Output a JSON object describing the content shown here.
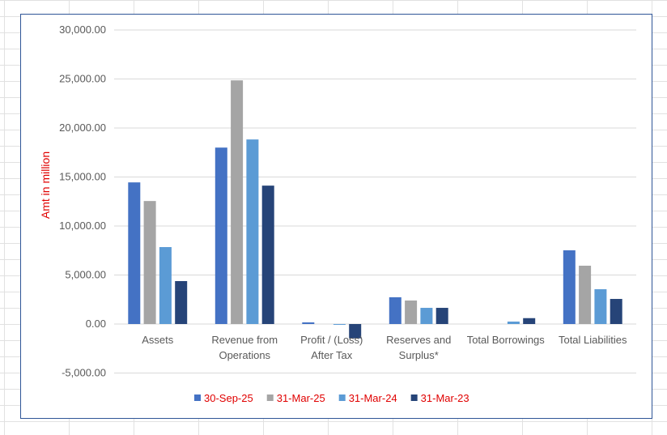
{
  "chart_data": {
    "type": "bar",
    "title": "",
    "xlabel": "",
    "ylabel": "Amt in million",
    "ylim": [
      -5000,
      30000
    ],
    "yticks": [
      "30,000.00",
      "25,000.00",
      "20,000.00",
      "15,000.00",
      "10,000.00",
      "5,000.00",
      "0.00",
      "-5,000.00"
    ],
    "ytick_values": [
      30000,
      25000,
      20000,
      15000,
      10000,
      5000,
      0,
      -5000
    ],
    "categories": [
      [
        "Assets"
      ],
      [
        "Revenue from",
        "Operations"
      ],
      [
        "Profit / (Loss)",
        "After Tax"
      ],
      [
        "Reserves and",
        "Surplus*"
      ],
      [
        "Total Borrowings"
      ],
      [
        "Total Liabilities"
      ]
    ],
    "series": [
      {
        "name": "30-Sep-25",
        "color": "#4472c4",
        "values": [
          14450,
          18000,
          170,
          2730,
          0,
          7520
        ]
      },
      {
        "name": "31-Mar-25",
        "color": "#a5a5a5",
        "values": [
          12550,
          24860,
          0,
          2400,
          0,
          5950
        ]
      },
      {
        "name": "31-Mar-24",
        "color": "#5b9bd5",
        "values": [
          7850,
          18830,
          -80,
          1650,
          250,
          3550
        ]
      },
      {
        "name": "31-Mar-23",
        "color": "#264478",
        "values": [
          4380,
          14120,
          -1460,
          1650,
          600,
          2560
        ]
      }
    ],
    "grid": true,
    "legend": "bottom"
  }
}
